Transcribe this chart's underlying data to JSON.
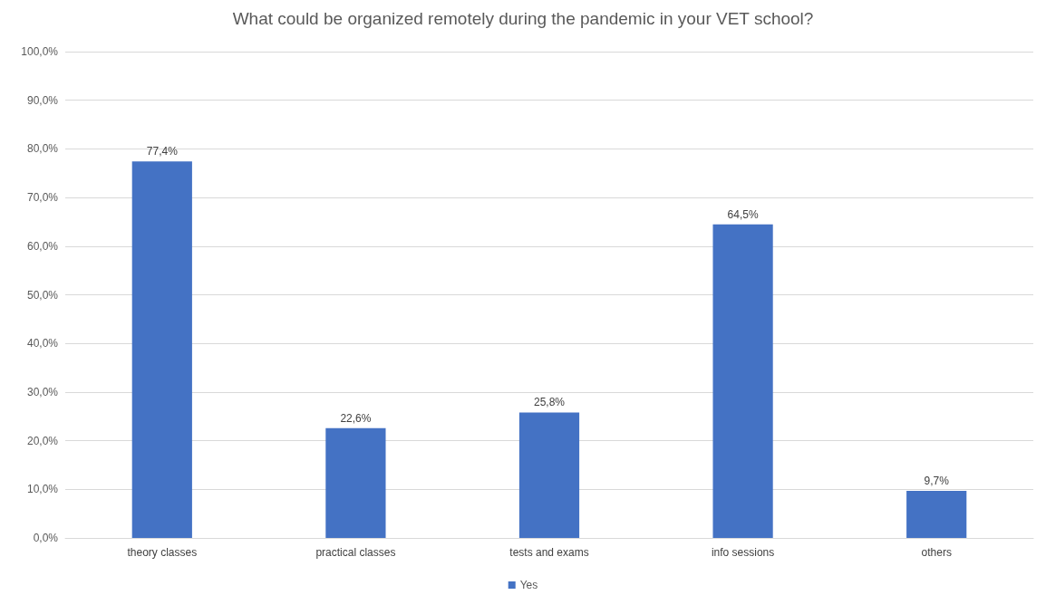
{
  "chart_data": {
    "type": "bar",
    "title": "What could be organized remotely during the pandemic in your VET school?",
    "categories": [
      "theory classes",
      "practical classes",
      "tests and exams",
      "info sessions",
      "others"
    ],
    "series": [
      {
        "name": "Yes",
        "color": "#4472c4",
        "values": [
          77.4,
          22.6,
          25.8,
          64.5,
          9.7
        ],
        "value_labels": [
          "77,4%",
          "22,6%",
          "25,8%",
          "64,5%",
          "9,7%"
        ]
      }
    ],
    "ylim": [
      0,
      100
    ],
    "yticks": [
      {
        "value": 0,
        "label": "0,0%"
      },
      {
        "value": 10,
        "label": "10,0%"
      },
      {
        "value": 20,
        "label": "20,0%"
      },
      {
        "value": 30,
        "label": "30,0%"
      },
      {
        "value": 40,
        "label": "40,0%"
      },
      {
        "value": 50,
        "label": "50,0%"
      },
      {
        "value": 60,
        "label": "60,0%"
      },
      {
        "value": 70,
        "label": "70,0%"
      },
      {
        "value": 80,
        "label": "80,0%"
      },
      {
        "value": 90,
        "label": "90,0%"
      },
      {
        "value": 100,
        "label": "100,0%"
      }
    ],
    "grid": "y",
    "legend": "bottom"
  }
}
